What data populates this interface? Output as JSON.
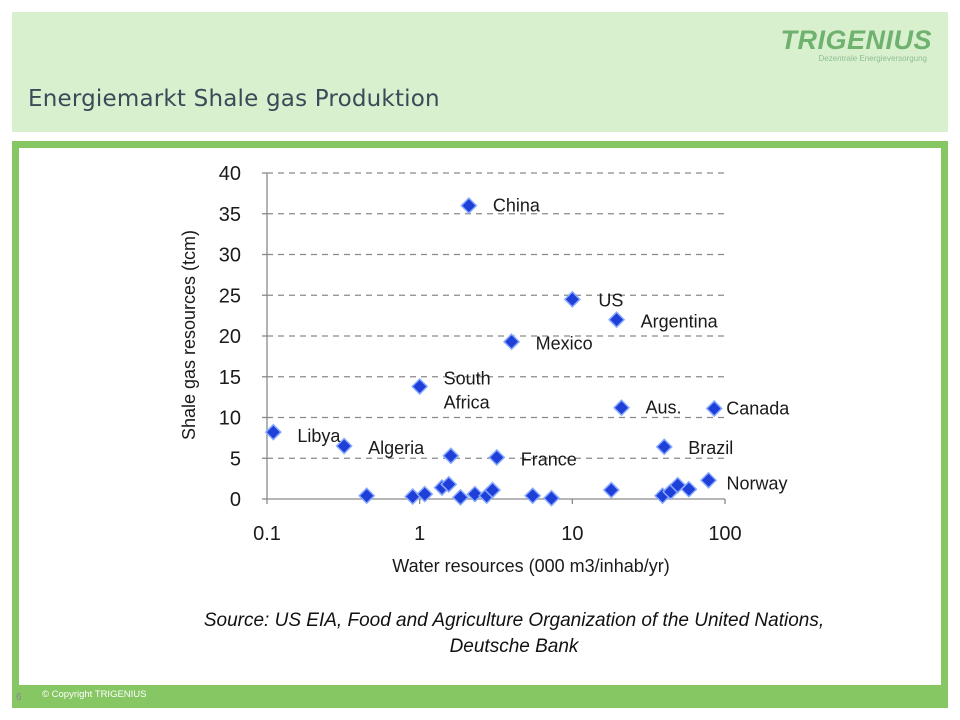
{
  "header": {
    "title": "Energiemarkt Shale gas Produktion",
    "logo_name": "TRIGENIUS",
    "logo_tagline": "Dezentrale Energieversorgung"
  },
  "colors": {
    "header_bg": "#d9f0cf",
    "frame_green": "#86c663",
    "logo_green": "#6fb26f",
    "marker_fill": "#1f3fd9",
    "marker_stroke": "#87a9ff"
  },
  "chart_data": {
    "type": "scatter",
    "title": "",
    "xlabel": "Water resources (000 m3/inhab/yr)",
    "ylabel": "Shale gas resources (tcm)",
    "x_scale": "log",
    "xlim": [
      0.1,
      100
    ],
    "ylim": [
      0,
      40
    ],
    "x_ticks": [
      0.1,
      1,
      10,
      100
    ],
    "x_tick_labels": [
      "0.1",
      "1",
      "10",
      "100"
    ],
    "y_ticks": [
      0,
      5,
      10,
      15,
      20,
      25,
      30,
      35,
      40
    ],
    "y_tick_labels": [
      "0",
      "5",
      "10",
      "15",
      "20",
      "25",
      "30",
      "35",
      "40"
    ],
    "grid": "horizontal dashed",
    "points": [
      {
        "x": 2.1,
        "y": 36,
        "label": "China"
      },
      {
        "x": 10,
        "y": 24.5,
        "label": "US"
      },
      {
        "x": 19.5,
        "y": 22,
        "label": "Argentina"
      },
      {
        "x": 4.0,
        "y": 19.3,
        "label": "Mexico"
      },
      {
        "x": 1.0,
        "y": 13.8,
        "label": "South Africa"
      },
      {
        "x": 21,
        "y": 11.2,
        "label": "Aus."
      },
      {
        "x": 85,
        "y": 11.1,
        "label": "Canada"
      },
      {
        "x": 0.11,
        "y": 8.2,
        "label": "Libya"
      },
      {
        "x": 0.32,
        "y": 6.5,
        "label": "Algeria"
      },
      {
        "x": 40,
        "y": 6.4,
        "label": "Brazil"
      },
      {
        "x": 1.6,
        "y": 5.3,
        "label": ""
      },
      {
        "x": 3.2,
        "y": 5.1,
        "label": "France"
      },
      {
        "x": 78,
        "y": 2.3,
        "label": "Norway"
      },
      {
        "x": 0.45,
        "y": 0.4,
        "label": ""
      },
      {
        "x": 0.9,
        "y": 0.3,
        "label": ""
      },
      {
        "x": 1.08,
        "y": 0.6,
        "label": ""
      },
      {
        "x": 1.4,
        "y": 1.4,
        "label": ""
      },
      {
        "x": 1.55,
        "y": 1.8,
        "label": ""
      },
      {
        "x": 1.85,
        "y": 0.2,
        "label": ""
      },
      {
        "x": 2.3,
        "y": 0.6,
        "label": ""
      },
      {
        "x": 2.75,
        "y": 0.4,
        "label": ""
      },
      {
        "x": 3.0,
        "y": 1.1,
        "label": ""
      },
      {
        "x": 5.5,
        "y": 0.4,
        "label": ""
      },
      {
        "x": 7.3,
        "y": 0.1,
        "label": ""
      },
      {
        "x": 18,
        "y": 1.1,
        "label": ""
      },
      {
        "x": 39,
        "y": 0.4,
        "label": ""
      },
      {
        "x": 44,
        "y": 0.9,
        "label": ""
      },
      {
        "x": 49,
        "y": 1.7,
        "label": ""
      },
      {
        "x": 58,
        "y": 1.2,
        "label": ""
      }
    ],
    "source": "Source: US EIA, Food and Agriculture Organization of the United Nations, Deutsche Bank"
  },
  "footer": {
    "page_number": "6",
    "copyright": "© Copyright TRIGENIUS"
  }
}
